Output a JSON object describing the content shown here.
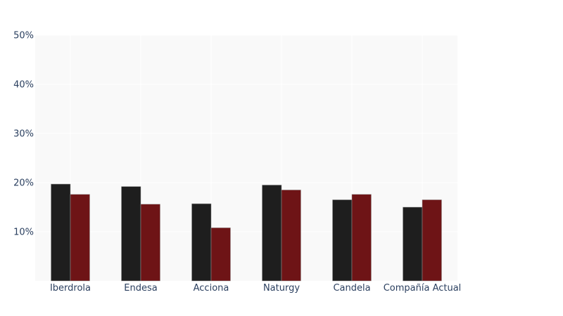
{
  "chart_data": {
    "type": "bar",
    "categories": [
      "Iberdrola",
      "Endesa",
      "Acciona",
      "Naturgy",
      "Candela",
      "Compañía Actual"
    ],
    "series": [
      {
        "values": [
          19.7,
          19.2,
          15.7,
          19.5,
          16.5,
          15.0
        ],
        "color": "#1e1e1e"
      },
      {
        "values": [
          17.6,
          15.6,
          10.8,
          18.5,
          17.6,
          16.5
        ],
        "color": "#6e1416"
      }
    ],
    "ylim": [
      0,
      50
    ],
    "yticks": [
      10,
      20,
      30,
      40,
      50
    ],
    "ytick_labels": [
      "10%",
      "20%",
      "30%",
      "40%",
      "50%"
    ],
    "grid": true,
    "plot_background": "#f9f9f9",
    "gridline_color": "#ffffff",
    "title": "",
    "xlabel": "",
    "ylabel": ""
  }
}
